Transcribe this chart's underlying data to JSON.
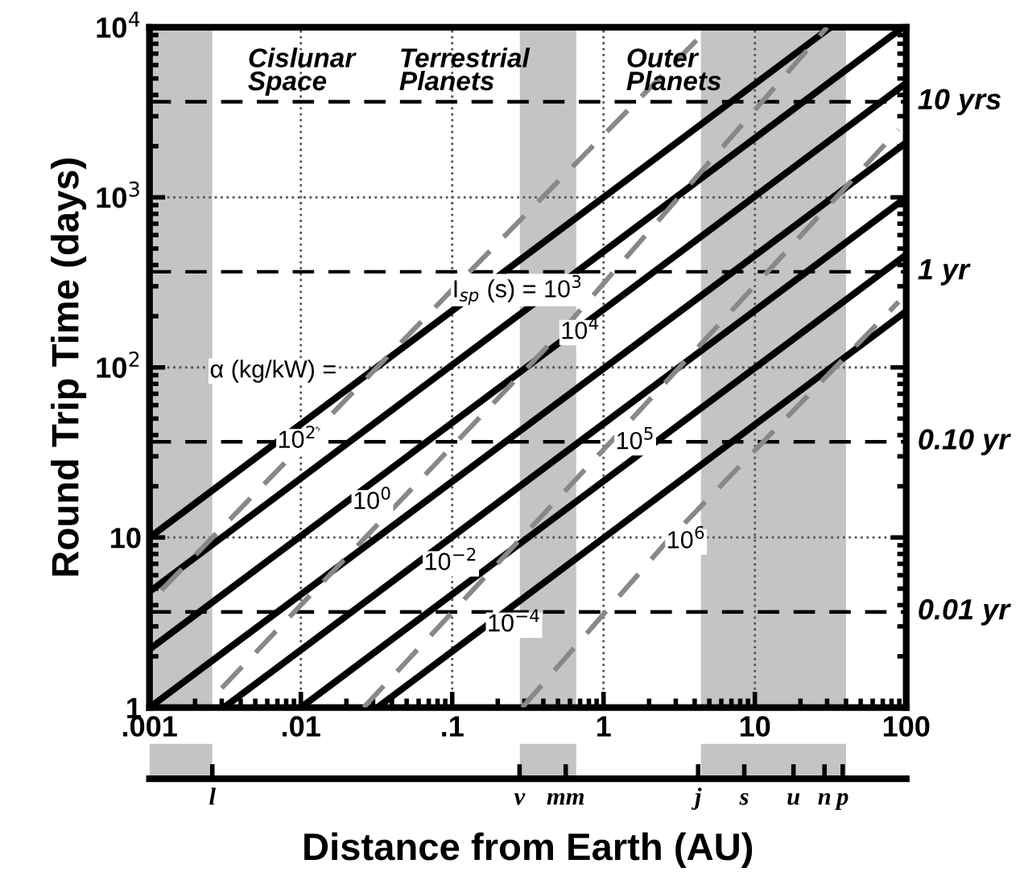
{
  "chart_data": {
    "type": "line",
    "xlabel": "Distance from Earth (AU)",
    "ylabel": "Round Trip Time (days)",
    "log": "xy",
    "xlim": [
      0.001,
      100
    ],
    "ylim": [
      1,
      10000
    ],
    "xticks": [
      {
        "value": 0.001,
        "label": ".001"
      },
      {
        "value": 0.01,
        "label": ".01"
      },
      {
        "value": 0.1,
        "label": ".1"
      },
      1,
      10,
      100
    ],
    "yticks": [
      1,
      10,
      {
        "value": 100,
        "label": "10$^{2}$"
      },
      {
        "value": 1000,
        "label": "10$^{3}$"
      },
      {
        "value": 10000,
        "label": "10$^{4}$"
      }
    ],
    "grid": true,
    "legend": false,
    "marker": "none",
    "series": [
      {
        "color": "#000000",
        "line_style": "solid",
        "x": [
          0.001,
          31.6
        ],
        "values": [
          10,
          10000
        ]
      },
      {
        "color": "#000000",
        "line_style": "solid",
        "x": [
          0.001,
          95
        ],
        "values": [
          4.8,
          10000
        ]
      },
      {
        "color": "#000000",
        "line_style": "solid",
        "x": [
          0.001,
          100
        ],
        "values": [
          2.2,
          4700
        ]
      },
      {
        "color": "#000000",
        "line_style": "solid",
        "x": [
          0.001,
          100
        ],
        "values": [
          1,
          2100
        ]
      },
      {
        "color": "#000000",
        "line_style": "solid",
        "x": [
          0.0031,
          100
        ],
        "values": [
          1,
          1000
        ]
      },
      {
        "color": "#000000",
        "line_style": "solid",
        "x": [
          0.01,
          100
        ],
        "values": [
          1,
          460
        ]
      },
      {
        "color": "#000000",
        "line_style": "solid",
        "x": [
          0.032,
          100
        ],
        "values": [
          1,
          214
        ]
      },
      {
        "color": "#888888",
        "line_style": "dashed",
        "x": [
          0.0012,
          0.14,
          5
        ],
        "values": [
          4.9,
          390,
          10000
        ]
      },
      {
        "color": "#888888",
        "line_style": "dashed",
        "x": [
          0.003,
          0.52,
          30
        ],
        "values": [
          1.3,
          160,
          10000
        ]
      },
      {
        "color": "#888888",
        "line_style": "dashed",
        "x": [
          0.026,
          1.1,
          89
        ],
        "values": [
          1,
          36,
          2500
        ]
      },
      {
        "color": "#888888",
        "line_style": "dashed",
        "x": [
          0.29,
          2.6,
          89
        ],
        "values": [
          1,
          9.4,
          243
        ]
      }
    ],
    "ref_lines": [
      {
        "axis": "y",
        "value": 3.65,
        "label": "0.01 yr",
        "color": "#000000",
        "line_style": "dashed"
      },
      {
        "axis": "y",
        "value": 36.5,
        "label": "0.10 yr",
        "color": "#000000",
        "line_style": "dashed"
      },
      {
        "axis": "y",
        "value": 365,
        "label": "1 yr",
        "color": "#000000",
        "line_style": "dashed"
      },
      {
        "axis": "y",
        "value": 3650,
        "label": "10 yrs",
        "color": "#000000",
        "line_style": "dashed"
      }
    ],
    "bands": [
      {
        "axis": "x",
        "from": 0.001,
        "to": 0.0026,
        "color": "#c4c4c4"
      },
      {
        "axis": "x",
        "from": 0.28,
        "to": 0.66,
        "color": "#c4c4c4"
      },
      {
        "axis": "x",
        "from": 4.4,
        "to": 40,
        "color": "#c4c4c4"
      }
    ],
    "annotations": [
      "Cislunar\nSpace",
      "Terrestrial\nPlanets",
      "Outer\nPlanets",
      "l",
      "v",
      "mm",
      "j",
      "s",
      "u",
      "n",
      "p",
      {
        "text": "α (kg/kW) =",
        "x": 0.0025,
        "y": 95
      },
      {
        "text": "10$^{2}$",
        "x": 0.007,
        "y": 36.6
      },
      {
        "text": "10$^{0}$",
        "x": 0.022,
        "y": 16
      },
      {
        "text": "10$^{−2}$",
        "x": 0.065,
        "y": 7
      },
      {
        "text": "10$^{−4}$",
        "x": 0.17,
        "y": 3.05
      },
      {
        "text": "I$_{sp}$ (s) = 10$^{3}$",
        "x": 0.1,
        "y": 285
      },
      {
        "text": "10$^{4}$",
        "x": 0.52,
        "y": 160
      },
      {
        "text": "10$^{5}$",
        "x": 1.2,
        "y": 36
      },
      {
        "text": "10$^{6}$",
        "x": 2.6,
        "y": 9.4
      }
    ]
  }
}
